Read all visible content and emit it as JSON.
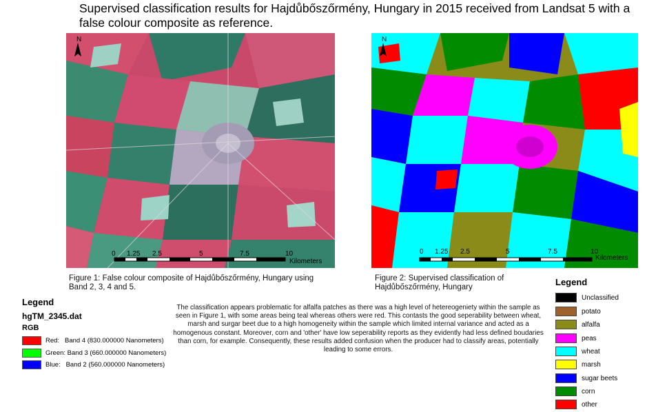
{
  "title": "Supervised classification results for Hajdůbőszőrmény, Hungary in 2015 received from Landsat 5 with a false colour composite as reference.",
  "map1": {
    "north_label": "N",
    "scale_ticks": [
      "0",
      "1.25",
      "2.5",
      "5",
      "7.5",
      "10"
    ],
    "scale_unit": "Kilometers",
    "caption": "Figure 1: False colour composite of Hajdůbőszőrmény, Hungary using Band 2, 3, 4 and 5."
  },
  "map2": {
    "north_label": "N",
    "scale_ticks": [
      "0",
      "1.25",
      "2.5",
      "5",
      "7.5",
      "10"
    ],
    "scale_unit": "Kilometers",
    "caption": "Figure 2: Supervised classification of Hajdůbőszőrmény, Hungary"
  },
  "legend_left": {
    "title": "Legend",
    "file": "hgTM_2345.dat",
    "rgb_label": "RGB",
    "bands": [
      {
        "label": "Red:   Band 4 (830.000000 Nanometers)",
        "color": "#ff0000"
      },
      {
        "label": "Green: Band 3 (660.000000 Nanometers)",
        "color": "#00ff00"
      },
      {
        "label": "Blue:   Band 2 (560.000000 Nanometers)",
        "color": "#0000ff"
      }
    ]
  },
  "paragraph": "The classification appears problematic for alfalfa patches as there was a high level of hetereogeniety within the sample as seen in Figure 1, with some areas being teal whereas others were red. This contasts the good seperability between wheat, marsh and surgar beet due to a high homogeneity within the sample which limited internal variance and acted as a homogenous constant. Moreover, corn and 'other' have low seperability reports as they evidently had less defined boudaries than corn, for example. Consequently, these results added confusion when the producer had to classify areas, potentially leading to some errors.",
  "legend_right": {
    "title": "Legend",
    "classes": [
      {
        "label": "Unclassified",
        "color": "#000000"
      },
      {
        "label": "potato",
        "color": "#a0622d"
      },
      {
        "label": "alfalfa",
        "color": "#8b8b1a"
      },
      {
        "label": "peas",
        "color": "#ff00ff"
      },
      {
        "label": "wheat",
        "color": "#00ffff"
      },
      {
        "label": "marsh",
        "color": "#ffff00"
      },
      {
        "label": "sugar beets",
        "color": "#0000ff"
      },
      {
        "label": "corn",
        "color": "#008b00"
      },
      {
        "label": "other",
        "color": "#ff0000"
      }
    ]
  }
}
